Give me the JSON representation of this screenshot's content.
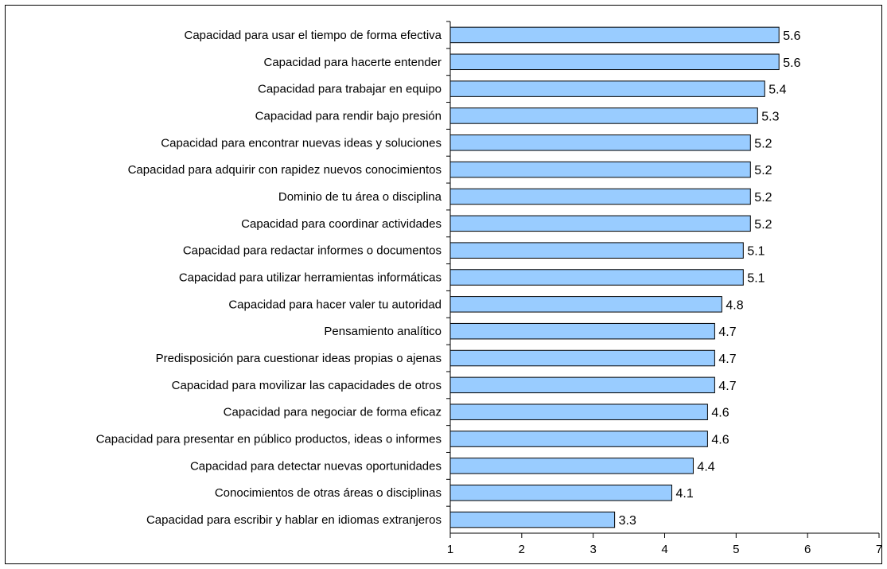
{
  "chart_data": {
    "type": "bar",
    "orientation": "horizontal",
    "categories": [
      "Capacidad para usar el tiempo de forma efectiva",
      "Capacidad para hacerte entender",
      "Capacidad para trabajar en equipo",
      "Capacidad para rendir bajo presión",
      "Capacidad para encontrar nuevas ideas y soluciones",
      "Capacidad para adquirir con rapidez nuevos conocimientos",
      "Dominio de tu área o disciplina",
      "Capacidad para coordinar actividades",
      "Capacidad para redactar informes o documentos",
      "Capacidad para utilizar herramientas informáticas",
      "Capacidad para hacer valer tu autoridad",
      "Pensamiento analítico",
      "Predisposición para cuestionar ideas propias o ajenas",
      "Capacidad para movilizar las capacidades de otros",
      "Capacidad para negociar de forma eficaz",
      "Capacidad para presentar en público productos, ideas o informes",
      "Capacidad para detectar nuevas oportunidades",
      "Conocimientos de otras áreas o disciplinas",
      "Capacidad para escribir y hablar en idiomas extranjeros"
    ],
    "values": [
      5.6,
      5.6,
      5.4,
      5.3,
      5.2,
      5.2,
      5.2,
      5.2,
      5.1,
      5.1,
      4.8,
      4.7,
      4.7,
      4.7,
      4.6,
      4.6,
      4.4,
      4.1,
      3.3
    ],
    "value_labels": [
      "5.6",
      "5.6",
      "5.4",
      "5.3",
      "5.2",
      "5.2",
      "5.2",
      "5.2",
      "5.1",
      "5.1",
      "4.8",
      "4.7",
      "4.7",
      "4.7",
      "4.6",
      "4.6",
      "4.4",
      "4.1",
      "3.3"
    ],
    "xlim": [
      1,
      7
    ],
    "xticks": [
      "1",
      "2",
      "3",
      "4",
      "5",
      "6",
      "7"
    ],
    "title": "",
    "xlabel": "",
    "ylabel": "",
    "grid": false,
    "legend": "none",
    "bar_color": "#99CCFF",
    "bar_edge_color": "#000000"
  }
}
